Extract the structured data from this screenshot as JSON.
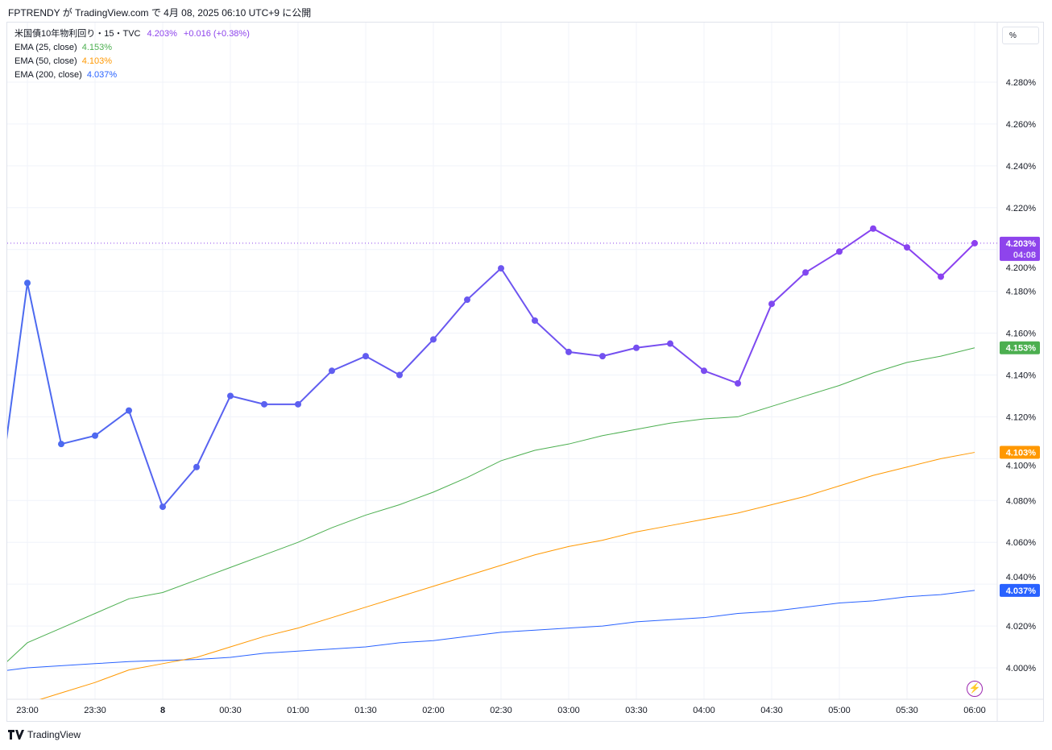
{
  "header": {
    "text": "FPTRENDY が TradingView.com で 4月 08, 2025 06:10 UTC+9 に公開"
  },
  "legend": {
    "symbol": "米国債10年物利回り・15・TVC",
    "price": "4.203%",
    "change": "+0.016 (+0.38%)",
    "ema25_label": "EMA (25, close)",
    "ema25_value": "4.153%",
    "ema50_label": "EMA (50, close)",
    "ema50_value": "4.103%",
    "ema200_label": "EMA (200, close)",
    "ema200_value": "4.037%"
  },
  "unit_button": "%",
  "footer": {
    "brand": "TradingView"
  },
  "badges": {
    "price": "4.203%",
    "countdown": "04:08",
    "ema25": "4.153%",
    "ema50": "4.103%",
    "ema200": "4.037%"
  },
  "colors": {
    "price_start": "#4a6cf0",
    "price_end": "#8d3ff0",
    "ema25": "#4caf50",
    "ema50": "#ff9800",
    "ema200": "#2962ff",
    "price_badge": "#8e44ec"
  },
  "chart_data": {
    "type": "line",
    "title": "米国債10年物利回り・15・TVC",
    "ylabel": "%",
    "ylim": [
      3.985,
      4.29
    ],
    "y_ticks": [
      "4.000%",
      "4.020%",
      "4.040%",
      "4.060%",
      "4.080%",
      "4.100%",
      "4.120%",
      "4.140%",
      "4.160%",
      "4.180%",
      "4.200%",
      "4.220%",
      "4.240%",
      "4.260%",
      "4.280%"
    ],
    "x_tick_labels": [
      "23:00",
      "23:30",
      "8",
      "00:30",
      "01:00",
      "01:30",
      "02:00",
      "02:30",
      "03:00",
      "03:30",
      "04:00",
      "04:30",
      "05:00",
      "05:30",
      "06:00"
    ],
    "x": [
      "22:45",
      "23:00",
      "23:15",
      "23:30",
      "23:45",
      "00:00",
      "00:15",
      "00:30",
      "00:45",
      "01:00",
      "01:15",
      "01:30",
      "01:45",
      "02:00",
      "02:15",
      "02:30",
      "02:45",
      "03:00",
      "03:15",
      "03:30",
      "03:45",
      "04:00",
      "04:15",
      "04:30",
      "04:45",
      "05:00",
      "05:15",
      "05:30",
      "05:45",
      "06:00"
    ],
    "series": [
      {
        "name": "米国債10年物利回り",
        "values": [
          4.063,
          4.184,
          4.107,
          4.111,
          4.123,
          4.077,
          4.096,
          4.13,
          4.126,
          4.126,
          4.142,
          4.149,
          4.14,
          4.157,
          4.176,
          4.191,
          4.166,
          4.151,
          4.149,
          4.153,
          4.155,
          4.142,
          4.136,
          4.174,
          4.189,
          4.199,
          4.21,
          4.201,
          4.187,
          4.203
        ]
      },
      {
        "name": "EMA (25, close)",
        "values": [
          3.997,
          4.012,
          4.019,
          4.026,
          4.033,
          4.036,
          4.042,
          4.048,
          4.054,
          4.06,
          4.067,
          4.073,
          4.078,
          4.084,
          4.091,
          4.099,
          4.104,
          4.107,
          4.111,
          4.114,
          4.117,
          4.119,
          4.12,
          4.125,
          4.13,
          4.135,
          4.141,
          4.146,
          4.149,
          4.153
        ]
      },
      {
        "name": "EMA (50, close)",
        "values": [
          3.979,
          3.983,
          3.988,
          3.993,
          3.999,
          4.002,
          4.005,
          4.01,
          4.015,
          4.019,
          4.024,
          4.029,
          4.034,
          4.039,
          4.044,
          4.049,
          4.054,
          4.058,
          4.061,
          4.065,
          4.068,
          4.071,
          4.074,
          4.078,
          4.082,
          4.087,
          4.092,
          4.096,
          4.1,
          4.103
        ]
      },
      {
        "name": "EMA (200, close)",
        "values": [
          3.998,
          4.0,
          4.001,
          4.002,
          4.003,
          4.0035,
          4.004,
          4.005,
          4.007,
          4.008,
          4.009,
          4.01,
          4.012,
          4.013,
          4.015,
          4.017,
          4.018,
          4.019,
          4.02,
          4.022,
          4.023,
          4.024,
          4.026,
          4.027,
          4.029,
          4.031,
          4.032,
          4.034,
          4.035,
          4.037
        ]
      }
    ],
    "last_price_line": 4.203,
    "grid": true
  }
}
